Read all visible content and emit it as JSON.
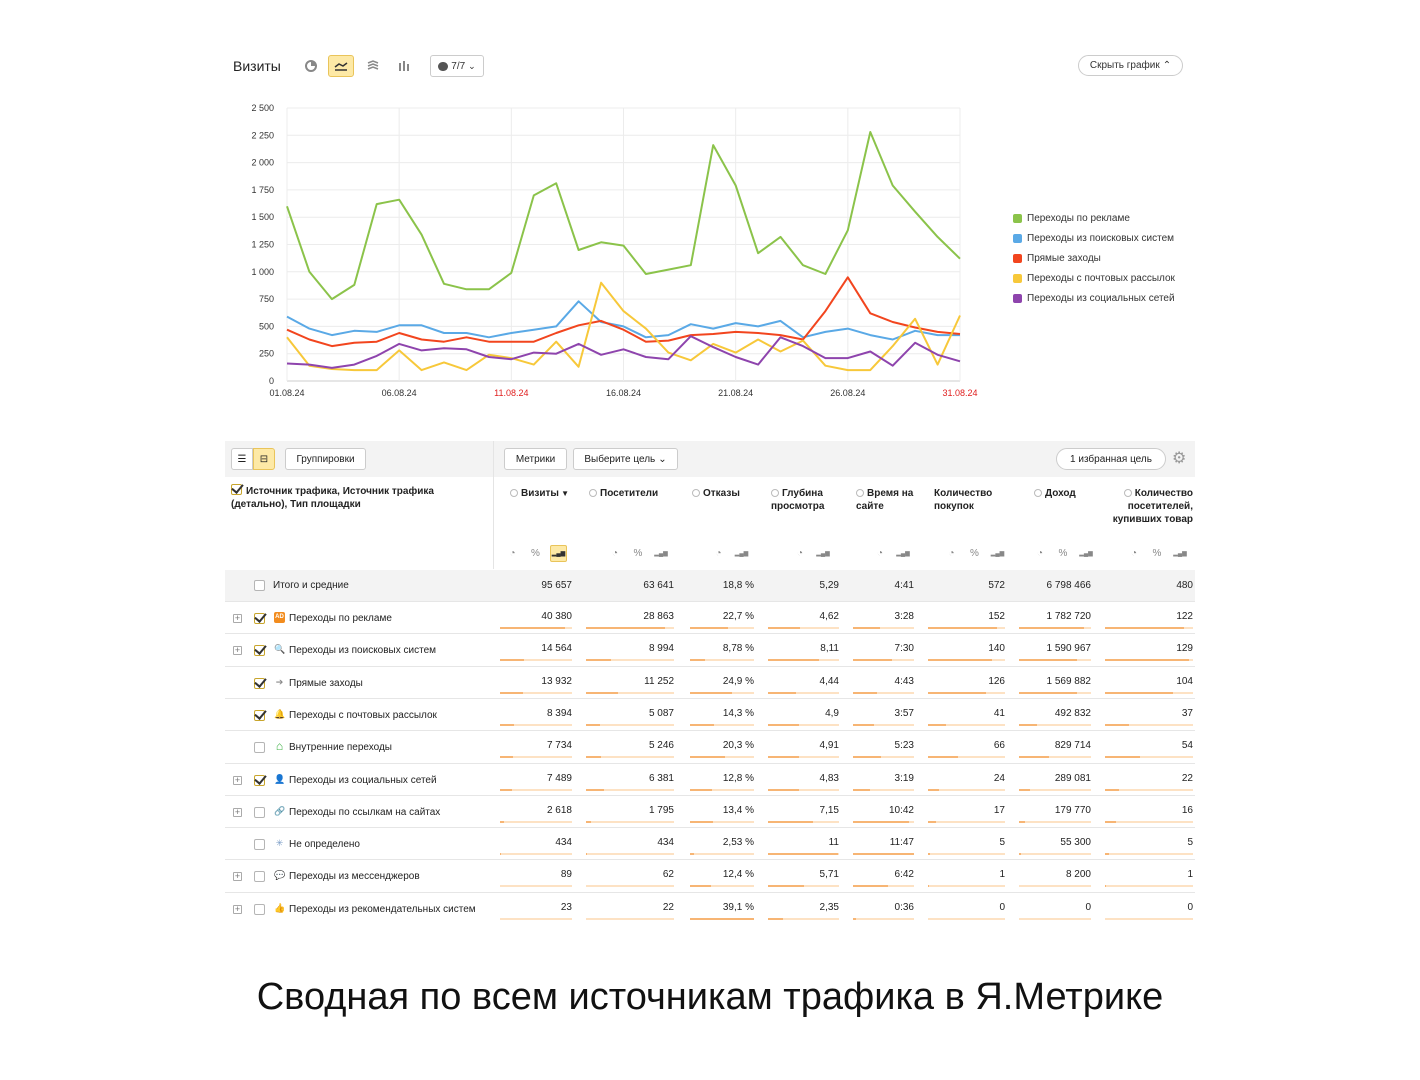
{
  "chart_header": {
    "title": "Визиты",
    "series_count": "7/7",
    "hide_chart_label": "Скрыть график"
  },
  "chart_data": {
    "type": "line",
    "x": [
      "01.08.24",
      "02.08.24",
      "03.08.24",
      "04.08.24",
      "05.08.24",
      "06.08.24",
      "07.08.24",
      "08.08.24",
      "09.08.24",
      "10.08.24",
      "11.08.24",
      "12.08.24",
      "13.08.24",
      "14.08.24",
      "15.08.24",
      "16.08.24",
      "17.08.24",
      "18.08.24",
      "19.08.24",
      "20.08.24",
      "21.08.24",
      "22.08.24",
      "23.08.24",
      "24.08.24",
      "25.08.24",
      "26.08.24",
      "27.08.24",
      "28.08.24",
      "29.08.24",
      "30.08.24",
      "31.08.24"
    ],
    "x_tick_labels": [
      "01.08.24",
      "06.08.24",
      "11.08.24",
      "16.08.24",
      "21.08.24",
      "26.08.24",
      "31.08.24"
    ],
    "x_tick_colors": [
      "#333333",
      "#333333",
      "#e02020",
      "#333333",
      "#333333",
      "#333333",
      "#e02020"
    ],
    "y_tick_labels": [
      "0",
      "250",
      "500",
      "750",
      "1 000",
      "1 250",
      "1 500",
      "1 750",
      "2 000",
      "2 250",
      "2 500"
    ],
    "ylim": [
      0,
      2500
    ],
    "grid": true,
    "legend_position": "right",
    "series": [
      {
        "name": "Переходы по рекламе",
        "color": "#8bc34a",
        "values": [
          1600,
          1000,
          750,
          880,
          1620,
          1660,
          1340,
          890,
          840,
          840,
          990,
          1700,
          1810,
          1200,
          1270,
          1240,
          980,
          1020,
          1060,
          2160,
          1790,
          1170,
          1320,
          1060,
          980,
          1380,
          2280,
          1790,
          1550,
          1320,
          1120
        ]
      },
      {
        "name": "Переходы из поисковых систем",
        "color": "#5aa9e6",
        "values": [
          590,
          480,
          420,
          460,
          450,
          510,
          510,
          440,
          440,
          400,
          440,
          470,
          500,
          730,
          540,
          500,
          400,
          420,
          520,
          480,
          530,
          500,
          550,
          400,
          450,
          480,
          420,
          380,
          460,
          420,
          420
        ]
      },
      {
        "name": "Прямые заходы",
        "color": "#f2451e",
        "values": [
          470,
          380,
          320,
          350,
          360,
          440,
          380,
          360,
          400,
          360,
          360,
          360,
          440,
          510,
          550,
          470,
          360,
          370,
          420,
          430,
          450,
          440,
          420,
          380,
          640,
          950,
          620,
          540,
          490,
          450,
          430
        ]
      },
      {
        "name": "Переходы с почтовых рассылок",
        "color": "#f7c83a",
        "values": [
          400,
          140,
          110,
          100,
          100,
          280,
          100,
          170,
          100,
          240,
          210,
          150,
          360,
          130,
          900,
          640,
          480,
          260,
          190,
          340,
          260,
          380,
          270,
          370,
          140,
          100,
          100,
          320,
          570,
          150,
          600
        ]
      },
      {
        "name": "Переходы из социальных сетей",
        "color": "#8e44ad",
        "values": [
          160,
          150,
          120,
          150,
          230,
          340,
          280,
          300,
          290,
          220,
          200,
          260,
          250,
          340,
          240,
          290,
          220,
          200,
          410,
          310,
          220,
          150,
          400,
          320,
          210,
          210,
          270,
          140,
          350,
          240,
          180
        ]
      }
    ]
  },
  "table": {
    "groupings_label": "Группировки",
    "metrics_label": "Метрики",
    "goal_select_label": "Выберите цель",
    "favorite_goal_label": "1 избранная цель",
    "dimension_header": "Источник трафика, Источник трафика (детально), Тип площадки",
    "columns": [
      "Визиты",
      "Посетители",
      "Отказы",
      "Глубина просмотра",
      "Время на сайте",
      "Количество покупок",
      "Доход",
      "Количество посетителей, купивших товар"
    ],
    "total": {
      "label": "Итого и средние",
      "values": [
        "95 657",
        "63 641",
        "18,8 %",
        "5,29",
        "4:41",
        "572",
        "6 798 466",
        "480"
      ]
    },
    "rows": [
      {
        "label": "Переходы по рекламе",
        "icon": "ad-icon",
        "icon_glyph": "AD",
        "checked": true,
        "expandable": true,
        "values": [
          "40 380",
          "28 863",
          "22,7 %",
          "4,62",
          "3:28",
          "152",
          "1 782 720",
          "122"
        ],
        "fill": [
          0.9,
          0.9,
          0.6,
          0.45,
          0.45,
          0.9,
          0.9,
          0.9
        ]
      },
      {
        "label": "Переходы из поисковых систем",
        "icon": "search-icon",
        "icon_glyph": "🔍",
        "checked": true,
        "expandable": true,
        "values": [
          "14 564",
          "8 994",
          "8,78 %",
          "8,11",
          "7:30",
          "140",
          "1 590 967",
          "129"
        ],
        "fill": [
          0.33,
          0.28,
          0.24,
          0.72,
          0.64,
          0.83,
          0.8,
          0.95
        ]
      },
      {
        "label": "Прямые заходы",
        "icon": "direct-icon",
        "icon_glyph": "➔",
        "checked": true,
        "expandable": false,
        "values": [
          "13 932",
          "11 252",
          "24,9 %",
          "4,44",
          "4:43",
          "126",
          "1 569 882",
          "104"
        ],
        "fill": [
          0.32,
          0.36,
          0.66,
          0.4,
          0.4,
          0.75,
          0.8,
          0.77
        ]
      },
      {
        "label": "Переходы с почтовых рассылок",
        "icon": "bell-icon",
        "icon_glyph": "🔔",
        "checked": true,
        "expandable": false,
        "values": [
          "8 394",
          "5 087",
          "14,3 %",
          "4,9",
          "3:57",
          "41",
          "492 832",
          "37"
        ],
        "fill": [
          0.19,
          0.16,
          0.38,
          0.44,
          0.34,
          0.24,
          0.25,
          0.27
        ]
      },
      {
        "label": "Внутренние переходы",
        "icon": "home-icon",
        "icon_glyph": "⌂",
        "checked": false,
        "expandable": false,
        "values": [
          "7 734",
          "5 246",
          "20,3 %",
          "4,91",
          "5:23",
          "66",
          "829 714",
          "54"
        ],
        "fill": [
          0.18,
          0.17,
          0.54,
          0.44,
          0.46,
          0.39,
          0.42,
          0.4
        ]
      },
      {
        "label": "Переходы из социальных сетей",
        "icon": "social-icon",
        "icon_glyph": "👤",
        "checked": true,
        "expandable": true,
        "values": [
          "7 489",
          "6 381",
          "12,8 %",
          "4,83",
          "3:19",
          "24",
          "289 081",
          "22"
        ],
        "fill": [
          0.17,
          0.2,
          0.34,
          0.43,
          0.28,
          0.14,
          0.15,
          0.16
        ]
      },
      {
        "label": "Переходы по ссылкам на сайтах",
        "icon": "link-icon",
        "icon_glyph": "🔗",
        "checked": false,
        "expandable": true,
        "values": [
          "2 618",
          "1 795",
          "13,4 %",
          "7,15",
          "10:42",
          "17",
          "179 770",
          "16"
        ],
        "fill": [
          0.06,
          0.06,
          0.36,
          0.64,
          0.91,
          0.1,
          0.09,
          0.12
        ]
      },
      {
        "label": "Не определено",
        "icon": "undefined-icon",
        "icon_glyph": "✳",
        "checked": false,
        "expandable": false,
        "values": [
          "434",
          "434",
          "2,53 %",
          "11",
          "11:47",
          "5",
          "55 300",
          "5"
        ],
        "fill": [
          0.01,
          0.01,
          0.07,
          0.98,
          1.0,
          0.03,
          0.03,
          0.04
        ]
      },
      {
        "label": "Переходы из мессенджеров",
        "icon": "messenger-icon",
        "icon_glyph": "💬",
        "checked": false,
        "expandable": true,
        "values": [
          "89",
          "62",
          "12,4 %",
          "5,71",
          "6:42",
          "1",
          "8 200",
          "1"
        ],
        "fill": [
          0.0,
          0.0,
          0.33,
          0.51,
          0.57,
          0.01,
          0.0,
          0.01
        ]
      },
      {
        "label": "Переходы из рекомендательных систем",
        "icon": "thumbs-up-icon",
        "icon_glyph": "👍",
        "checked": false,
        "expandable": true,
        "values": [
          "23",
          "22",
          "39,1 %",
          "2,35",
          "0:36",
          "0",
          "0",
          "0"
        ],
        "fill": [
          0.0,
          0.0,
          1.0,
          0.21,
          0.05,
          0.0,
          0.0,
          0.0
        ]
      }
    ]
  },
  "caption": "Сводная по всем источникам трафика в Я.Метрике",
  "colors": {
    "accent": "#fde9a6",
    "bar_fill": "#f7b574",
    "weekend_tick": "#e02020"
  }
}
